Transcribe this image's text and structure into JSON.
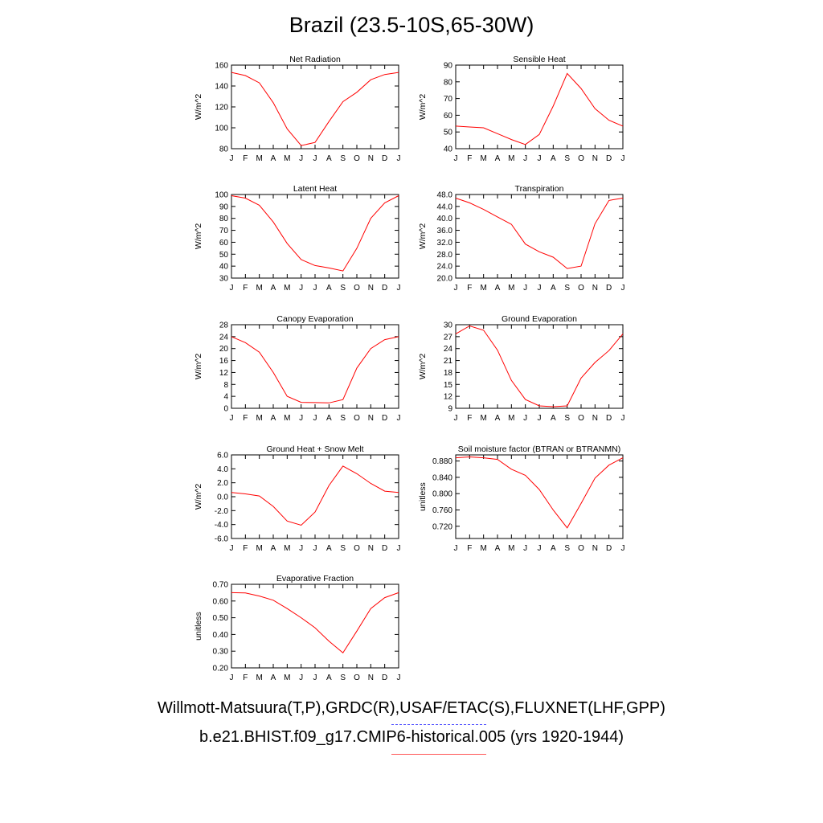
{
  "title": "Brazil (23.5-10S,65-30W)",
  "legend": {
    "observed_label": "Willmott-Matsuura(T,P),GRDC(R),USAF/ETAC(S),FLUXNET(LHF,GPP)",
    "observed_color": "#5555ff",
    "model_label": "b.e21.BHIST.f09_g17.CMIP6-historical.005 (yrs 1920-1944)",
    "model_color": "#ff5555"
  },
  "series_color": "#ff0000",
  "chart_data": [
    {
      "type": "line",
      "title": "Net Radiation",
      "ylabel": "W/m^2",
      "x": [
        "J",
        "F",
        "M",
        "A",
        "M",
        "J",
        "J",
        "A",
        "S",
        "O",
        "N",
        "D",
        "J"
      ],
      "ylim": [
        80,
        160
      ],
      "yticks": [
        "80",
        "100",
        "120",
        "140",
        "160"
      ],
      "series": [
        {
          "values": [
            153,
            150,
            143,
            124,
            99,
            83,
            86,
            106,
            125,
            134,
            146,
            151,
            153
          ]
        }
      ]
    },
    {
      "type": "line",
      "title": "Sensible Heat",
      "ylabel": "W/m^2",
      "x": [
        "J",
        "F",
        "M",
        "A",
        "M",
        "J",
        "J",
        "A",
        "S",
        "O",
        "N",
        "D",
        "J"
      ],
      "ylim": [
        40,
        90
      ],
      "yticks": [
        "40",
        "50",
        "60",
        "70",
        "80",
        "90"
      ],
      "series": [
        {
          "values": [
            53.5,
            53,
            52.5,
            49,
            45.5,
            42.5,
            48.5,
            65.5,
            85,
            76,
            64,
            57,
            53.5
          ]
        }
      ]
    },
    {
      "type": "line",
      "title": "Latent Heat",
      "ylabel": "W/m^2",
      "x": [
        "J",
        "F",
        "M",
        "A",
        "M",
        "J",
        "J",
        "A",
        "S",
        "O",
        "N",
        "D",
        "J"
      ],
      "ylim": [
        30,
        100
      ],
      "yticks": [
        "30",
        "40",
        "50",
        "60",
        "70",
        "80",
        "90",
        "100"
      ],
      "series": [
        {
          "values": [
            99,
            97,
            91,
            77,
            59,
            45.5,
            40.5,
            38.5,
            36,
            55,
            80,
            93,
            99
          ]
        }
      ]
    },
    {
      "type": "line",
      "title": "Transpiration",
      "ylabel": "W/m^2",
      "x": [
        "J",
        "F",
        "M",
        "A",
        "M",
        "J",
        "J",
        "A",
        "S",
        "O",
        "N",
        "D",
        "J"
      ],
      "ylim": [
        20,
        48
      ],
      "yticks": [
        "20.0",
        "24.0",
        "28.0",
        "32.0",
        "36.0",
        "40.0",
        "44.0",
        "48.0"
      ],
      "series": [
        {
          "values": [
            46.8,
            45.2,
            43,
            40.5,
            38,
            31.4,
            28.8,
            27,
            23.2,
            24,
            38.2,
            46,
            46.8
          ]
        }
      ]
    },
    {
      "type": "line",
      "title": "Canopy Evaporation",
      "ylabel": "W/m^2",
      "x": [
        "J",
        "F",
        "M",
        "A",
        "M",
        "J",
        "J",
        "A",
        "S",
        "O",
        "N",
        "D",
        "J"
      ],
      "ylim": [
        0,
        28
      ],
      "yticks": [
        "0",
        "4",
        "8",
        "12",
        "16",
        "20",
        "24",
        "28"
      ],
      "series": [
        {
          "values": [
            24,
            22,
            18.8,
            12,
            4,
            2,
            1.9,
            1.8,
            2.9,
            13.5,
            20,
            23,
            24
          ]
        }
      ]
    },
    {
      "type": "line",
      "title": "Ground Evaporation",
      "ylabel": "W/m^2",
      "x": [
        "J",
        "F",
        "M",
        "A",
        "M",
        "J",
        "J",
        "A",
        "S",
        "O",
        "N",
        "D",
        "J"
      ],
      "ylim": [
        9,
        30
      ],
      "yticks": [
        "9",
        "12",
        "15",
        "18",
        "21",
        "24",
        "27",
        "30"
      ],
      "series": [
        {
          "values": [
            27.7,
            29.7,
            28.6,
            23.6,
            16,
            11.2,
            9.6,
            9.4,
            9.6,
            16.6,
            20.5,
            23.5,
            27.7
          ]
        }
      ]
    },
    {
      "type": "line",
      "title": "Ground Heat + Snow Melt",
      "ylabel": "W/m^2",
      "x": [
        "J",
        "F",
        "M",
        "A",
        "M",
        "J",
        "J",
        "A",
        "S",
        "O",
        "N",
        "D",
        "J"
      ],
      "ylim": [
        -6,
        6
      ],
      "yticks": [
        "-6.0",
        "-4.0",
        "-2.0",
        "0.0",
        "2.0",
        "4.0",
        "6.0"
      ],
      "series": [
        {
          "values": [
            0.6,
            0.4,
            0.1,
            -1.4,
            -3.5,
            -4.1,
            -2.2,
            1.6,
            4.4,
            3.3,
            1.9,
            0.8,
            0.6
          ]
        }
      ]
    },
    {
      "type": "line",
      "title": "Soil moisture factor (BTRAN or BTRANMN)",
      "ylabel": "unitless",
      "x": [
        "J",
        "F",
        "M",
        "A",
        "M",
        "J",
        "J",
        "A",
        "S",
        "O",
        "N",
        "D",
        "J"
      ],
      "ylim": [
        0.69,
        0.895
      ],
      "yticks": [
        "0.720",
        "0.760",
        "0.800",
        "0.840",
        "0.880"
      ],
      "series": [
        {
          "values": [
            0.888,
            0.89,
            0.888,
            0.884,
            0.86,
            0.845,
            0.81,
            0.76,
            0.716,
            0.776,
            0.838,
            0.87,
            0.888
          ]
        }
      ]
    },
    {
      "type": "line",
      "title": "Evaporative Fraction",
      "ylabel": "unitless",
      "x": [
        "J",
        "F",
        "M",
        "A",
        "M",
        "J",
        "J",
        "A",
        "S",
        "O",
        "N",
        "D",
        "J"
      ],
      "ylim": [
        0.2,
        0.7
      ],
      "yticks": [
        "0.20",
        "0.30",
        "0.40",
        "0.50",
        "0.60",
        "0.70"
      ],
      "series": [
        {
          "values": [
            0.65,
            0.648,
            0.63,
            0.605,
            0.555,
            0.5,
            0.44,
            0.36,
            0.29,
            0.42,
            0.555,
            0.62,
            0.65
          ]
        }
      ]
    }
  ]
}
